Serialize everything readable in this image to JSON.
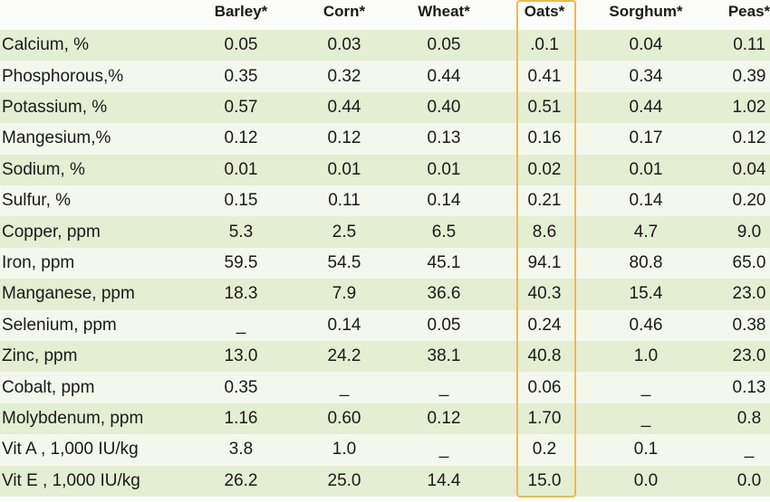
{
  "table": {
    "header": [
      "Barley*",
      "Corn*",
      "Wheat*",
      "Oats*",
      "Sorghum*",
      "Peas*"
    ],
    "rows": [
      [
        "Calcium, %",
        "0.05",
        "0.03",
        "0.05",
        ".0.1",
        "0.04",
        "0.11"
      ],
      [
        "Phosphorous,%",
        "0.35",
        "0.32",
        "0.44",
        "0.41",
        "0.34",
        "0.39"
      ],
      [
        "Potassium, %",
        "0.57",
        "0.44",
        "0.40",
        "0.51",
        "0.44",
        "1.02"
      ],
      [
        "Mangesium,%",
        "0.12",
        "0.12",
        "0.13",
        "0.16",
        "0.17",
        "0.12"
      ],
      [
        "Sodium, %",
        "0.01",
        "0.01",
        "0.01",
        "0.02",
        "0.01",
        "0.04"
      ],
      [
        "Sulfur, %",
        "0.15",
        "0.11",
        "0.14",
        "0.21",
        "0.14",
        "0.20"
      ],
      [
        "Copper, ppm",
        "5.3",
        "2.5",
        "6.5",
        "8.6",
        "4.7",
        "9.0"
      ],
      [
        "Iron, ppm",
        "59.5",
        "54.5",
        "45.1",
        "94.1",
        "80.8",
        "65.0"
      ],
      [
        "Manganese, ppm",
        "18.3",
        "7.9",
        "36.6",
        "40.3",
        "15.4",
        "23.0"
      ],
      [
        "Selenium, ppm",
        "_",
        "0.14",
        "0.05",
        "0.24",
        "0.46",
        "0.38"
      ],
      [
        "Zinc, ppm",
        "13.0",
        "24.2",
        "38.1",
        "40.8",
        "1.0",
        "23.0"
      ],
      [
        "Cobalt, ppm",
        "0.35",
        "_",
        "_",
        "0.06",
        "_",
        "0.13"
      ],
      [
        "Molybdenum, ppm",
        "1.16",
        "0.60",
        "0.12",
        "1.70",
        "_",
        "0.8"
      ],
      [
        "Vit A , 1,000 IU/kg",
        "3.8",
        "1.0",
        "_",
        "0.2",
        "0.1",
        "_"
      ],
      [
        "Vit E , 1,000 IU/kg",
        "26.2",
        "25.0",
        "14.4",
        "15.0",
        "0.0",
        "0.0"
      ]
    ]
  }
}
